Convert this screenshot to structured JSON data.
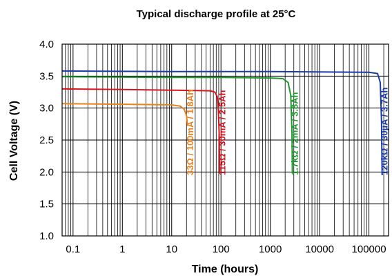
{
  "chart_data": {
    "type": "line",
    "title": "Typical discharge profile at 25°C",
    "xlabel": "Time (hours)",
    "ylabel": "Cell Voltage (V)",
    "x_scale": "log",
    "xlim": [
      0.06,
      250000
    ],
    "ylim": [
      1.0,
      4.0
    ],
    "x_ticks": [
      0.1,
      1,
      10,
      100,
      1000,
      10000,
      100000
    ],
    "x_tick_labels": [
      "0.1",
      "1",
      "10",
      "100",
      "1000",
      "10000",
      "100000"
    ],
    "y_ticks": [
      1.0,
      1.5,
      2.0,
      2.5,
      3.0,
      3.5,
      4.0
    ],
    "y_tick_labels": [
      "1.0",
      "1.5",
      "2.0",
      "2.5",
      "3.0",
      "3.5",
      "4.0"
    ],
    "grid": true,
    "series": [
      {
        "name": "33Ω / 100mA / 1.8Ah",
        "color": "#e8821e",
        "points": [
          [
            0.06,
            3.07
          ],
          [
            1,
            3.06
          ],
          [
            10,
            3.05
          ],
          [
            15,
            3.03
          ],
          [
            18,
            2.98
          ],
          [
            20,
            2.88
          ],
          [
            21,
            2.72
          ]
        ]
      },
      {
        "name": "115Ω / 30mA / 2.5Ah",
        "color": "#d9121e",
        "points": [
          [
            0.06,
            3.3
          ],
          [
            1,
            3.29
          ],
          [
            10,
            3.28
          ],
          [
            60,
            3.27
          ],
          [
            75,
            3.25
          ],
          [
            84,
            3.18
          ],
          [
            88,
            3.0
          ],
          [
            92,
            2.6
          ],
          [
            94,
            2.0
          ]
        ]
      },
      {
        "name": "1.7kΩ / 2mA / 3.8Ah",
        "color": "#1e9a2e",
        "points": [
          [
            0.06,
            3.49
          ],
          [
            10,
            3.48
          ],
          [
            100,
            3.48
          ],
          [
            1000,
            3.47
          ],
          [
            1800,
            3.46
          ],
          [
            2300,
            3.4
          ],
          [
            2600,
            3.2
          ],
          [
            2750,
            2.6
          ],
          [
            2800,
            2.0
          ]
        ]
      },
      {
        "name": "120kΩ / 30µA / 3.7Ah",
        "color": "#1a3aa8",
        "points": [
          [
            0.06,
            3.58
          ],
          [
            10,
            3.57
          ],
          [
            1000,
            3.57
          ],
          [
            100000,
            3.56
          ],
          [
            150000,
            3.54
          ],
          [
            170000,
            3.4
          ],
          [
            180000,
            2.8
          ],
          [
            185000,
            1.95
          ]
        ]
      }
    ]
  }
}
